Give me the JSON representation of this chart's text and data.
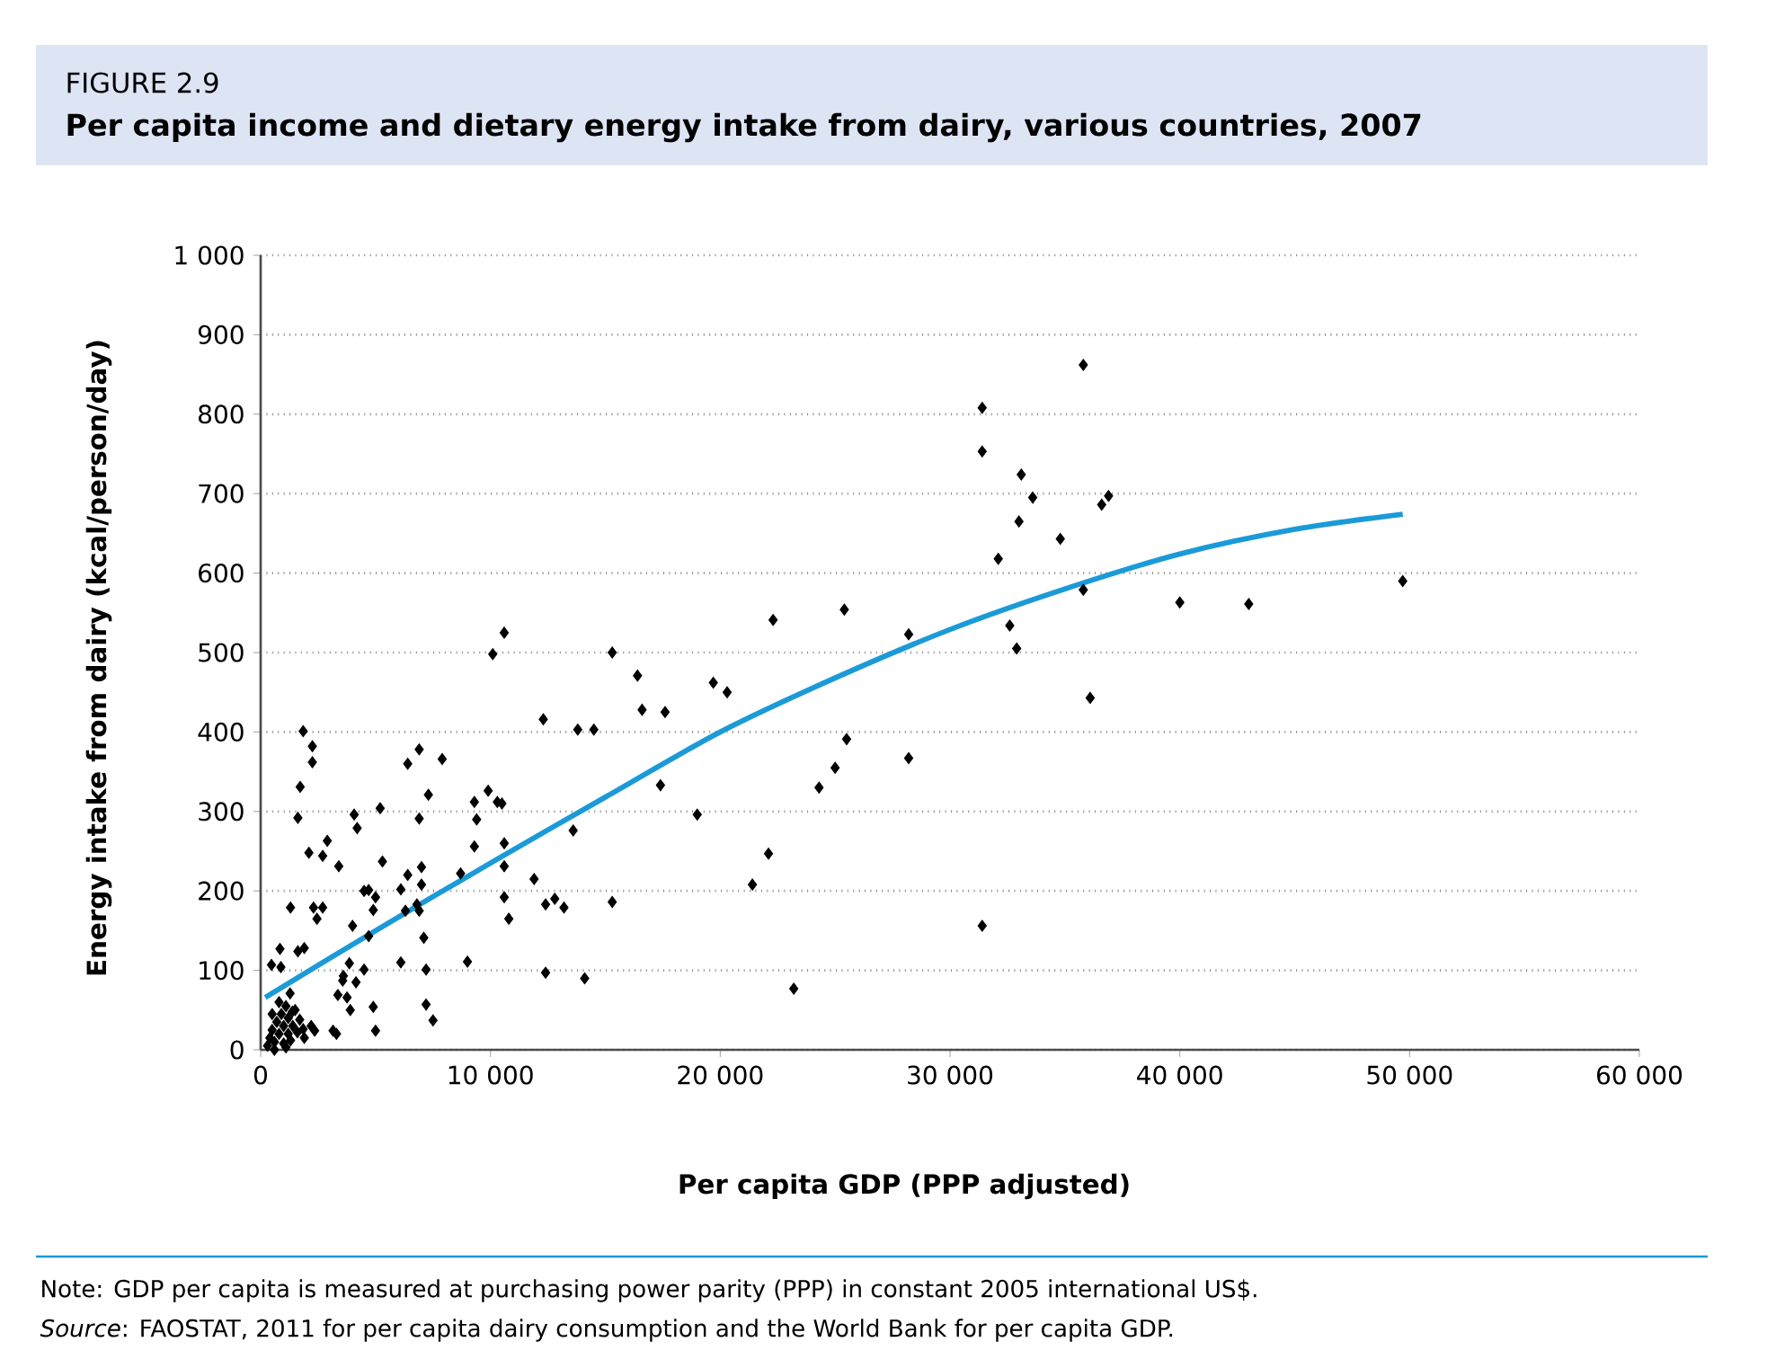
{
  "chart_data": {
    "type": "scatter",
    "subtitle": "FIGURE 2.9",
    "title": "Per capita income and dietary energy intake from dairy, various countries, 2007",
    "xlabel": "Per capita GDP (PPP adjusted)",
    "ylabel": "Energy intake from dairy (kcal/person/day)",
    "annotations": [
      "Note: GDP per capita is measured at purchasing power parity (PPP) in constant 2005 international US$.",
      "*Source*: FAOSTAT, 2011 for per capita dairy consumption and the World Bank for per capita GDP."
    ],
    "xlim": [
      0,
      60000
    ],
    "ylim": [
      0,
      1000
    ],
    "xticks": [
      0,
      {
        "value": 10000,
        "label": "10 000"
      },
      {
        "value": 20000,
        "label": "20 000"
      },
      {
        "value": 30000,
        "label": "30 000"
      },
      {
        "value": 40000,
        "label": "40 000"
      },
      {
        "value": 50000,
        "label": "50 000"
      },
      {
        "value": 60000,
        "label": "60 000"
      }
    ],
    "yticks": [
      0,
      100,
      200,
      300,
      400,
      500,
      600,
      700,
      800,
      900,
      {
        "value": 1000,
        "label": "1 000"
      }
    ],
    "grid": "y",
    "series": [
      {
        "type": "scatter",
        "marker": "diamond",
        "color": "#000000",
        "x": [
          31400,
          31400,
          35800,
          33100,
          33600,
          33000,
          32100,
          36600,
          36900,
          34800,
          35800,
          32600,
          32900,
          36100,
          40000,
          43000,
          49700,
          31400,
          28200,
          28200,
          25400,
          25500,
          25000,
          24300,
          23200,
          22300,
          22100,
          21400,
          20300,
          19700,
          19000,
          17600,
          17400,
          16600,
          16400,
          15300,
          15300,
          14500,
          13800,
          13600,
          14100,
          12400,
          12300,
          13200,
          12800,
          12400,
          11900,
          10800,
          10600,
          10100,
          10600,
          10600,
          10600,
          10300,
          9900,
          10500,
          9400,
          9300,
          9300,
          9000,
          8700,
          1850,
          2250,
          2250,
          1720,
          1620,
          6400,
          6900,
          7900,
          7300,
          6900,
          4070,
          4200,
          5200,
          2900,
          2100,
          2700,
          3400,
          5300,
          4700,
          5000,
          4900,
          4000,
          4700,
          1300,
          2300,
          2700,
          2450,
          840,
          470,
          880,
          1620,
          1900,
          1280,
          1380,
          3860,
          3600,
          3570,
          4150,
          3360,
          3760,
          4500,
          3900,
          4900,
          6100,
          7200,
          7200,
          7500,
          5000,
          3150,
          3300,
          2350,
          1850,
          4500,
          6100,
          6400,
          7000,
          7000,
          6800,
          6300,
          6900,
          7100,
          300,
          400,
          500,
          600,
          700,
          800,
          900,
          1000,
          1000,
          1100,
          1200,
          1200,
          1300,
          1400,
          1500,
          1600,
          1700,
          500,
          800,
          1900,
          2200,
          1100,
          600
        ],
        "values": [
          808,
          753,
          862,
          724,
          695,
          665,
          618,
          686,
          697,
          643,
          579,
          534,
          505,
          443,
          563,
          561,
          590,
          156,
          523,
          367,
          554,
          391,
          355,
          330,
          77,
          541,
          247,
          208,
          450,
          462,
          296,
          425,
          333,
          428,
          471,
          186,
          500,
          403,
          403,
          276,
          90,
          97,
          416,
          179,
          190,
          183,
          215,
          165,
          525,
          498,
          192,
          231,
          260,
          312,
          326,
          310,
          290,
          312,
          256,
          111,
          222,
          401,
          382,
          362,
          331,
          292,
          360,
          378,
          366,
          321,
          291,
          296,
          279,
          304,
          263,
          248,
          244,
          231,
          237,
          201,
          192,
          176,
          156,
          143,
          179,
          179,
          179,
          165,
          127,
          107,
          104,
          124,
          128,
          71,
          48,
          109,
          93,
          87,
          85,
          69,
          66,
          101,
          50,
          54,
          110,
          101,
          57,
          37,
          24,
          24,
          20,
          24,
          26,
          200,
          202,
          220,
          230,
          208,
          183,
          175,
          175,
          141,
          5,
          15,
          25,
          10,
          35,
          20,
          45,
          8,
          30,
          55,
          20,
          40,
          12,
          30,
          50,
          22,
          38,
          45,
          60,
          15,
          30,
          3,
          0
        ]
      },
      {
        "type": "line",
        "marker": "none",
        "color": "#1b9ad8",
        "x": [
          200,
          5000,
          10000,
          15000,
          20000,
          25000,
          30000,
          35000,
          40000,
          45000,
          49700
        ],
        "values": [
          66,
          150,
          235,
          318,
          400,
          468,
          529,
          580,
          624,
          655,
          674
        ]
      }
    ]
  }
}
